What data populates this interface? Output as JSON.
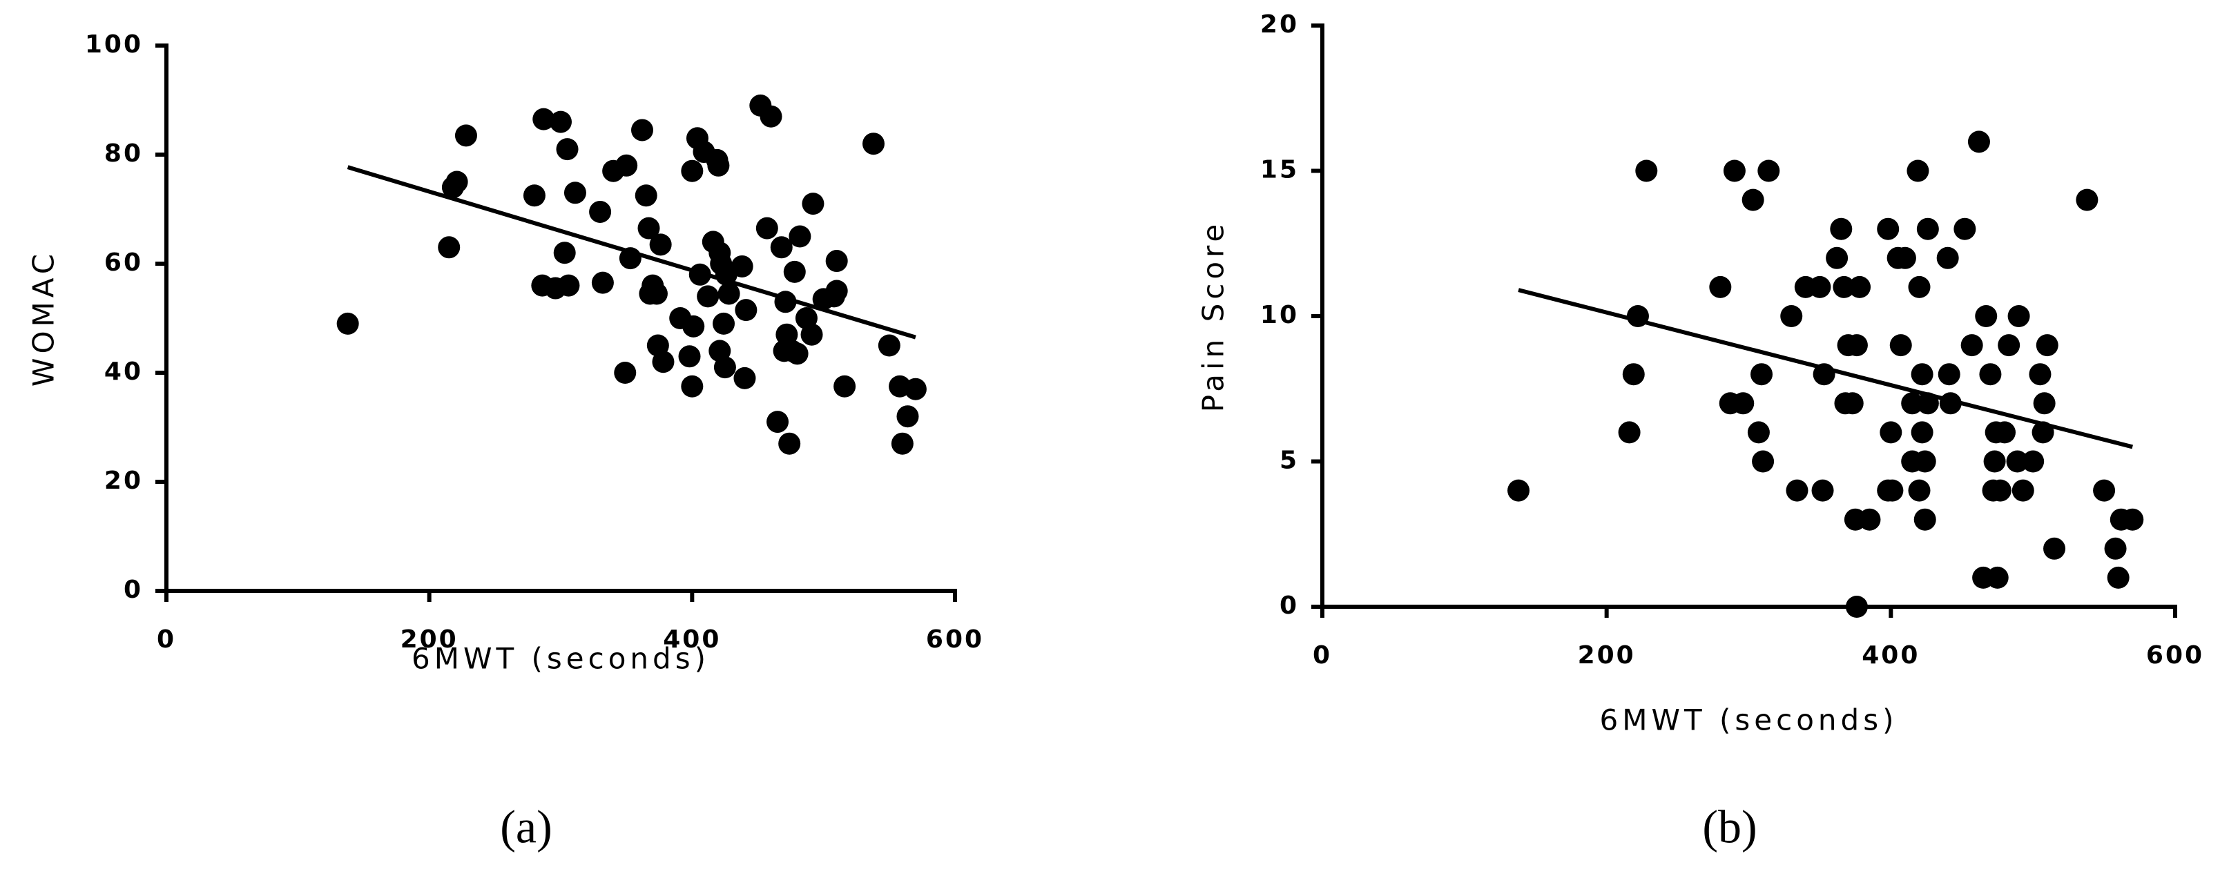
{
  "chart_data": [
    {
      "type": "scatter",
      "xlabel": "6MWT (seconds)",
      "ylabel": "WOMAC",
      "caption": "(a)",
      "color": "#000000",
      "xlim": [
        0,
        600
      ],
      "xticks": [
        0,
        200,
        400,
        600
      ],
      "ylim": [
        0,
        100
      ],
      "yticks": [
        0,
        20,
        40,
        60,
        80,
        100
      ],
      "x": [
        138,
        215,
        218,
        221,
        228,
        280,
        287,
        286,
        296,
        300,
        303,
        305,
        306,
        311,
        330,
        332,
        340,
        350,
        349,
        353,
        362,
        365,
        367,
        368,
        370,
        373,
        374,
        376,
        378,
        391,
        398,
        400,
        400,
        401,
        404,
        406,
        409,
        412,
        416,
        419,
        420,
        421,
        421,
        422,
        424,
        425,
        426,
        428,
        438,
        440,
        441,
        452,
        457,
        460,
        465,
        468,
        470,
        471,
        472,
        474,
        476,
        478,
        480,
        482,
        487,
        491,
        492,
        500,
        508,
        510,
        510,
        516,
        538,
        550,
        558,
        560,
        564,
        570
      ],
      "values": [
        49,
        63,
        74,
        75,
        83.5,
        72.5,
        86.5,
        56,
        55.5,
        86,
        62,
        81,
        56,
        73,
        69.5,
        56.5,
        77,
        78,
        40,
        61,
        84.5,
        72.5,
        66.5,
        54.5,
        56,
        54.5,
        45,
        63.5,
        42,
        50,
        43,
        77,
        37.5,
        48.5,
        83,
        58,
        80.5,
        54,
        64,
        79,
        78,
        44,
        62,
        60,
        49,
        41,
        58,
        54.5,
        59.5,
        39,
        51.5,
        89,
        66.5,
        87,
        31,
        63,
        44,
        53,
        47,
        27,
        44,
        58.5,
        43.5,
        65,
        50,
        47,
        71,
        53.5,
        54,
        55,
        60.5,
        37.5,
        82,
        45,
        37.5,
        27,
        32,
        37
      ],
      "trend_line": {
        "x": [
          138,
          570
        ],
        "values": [
          77.7,
          46.5
        ]
      }
    },
    {
      "type": "scatter",
      "xlabel": "6MWT (seconds)",
      "ylabel": "Pain Score",
      "caption": "(b)",
      "color": "#000000",
      "xlim": [
        0,
        600
      ],
      "xticks": [
        0,
        200,
        400,
        600
      ],
      "ylim": [
        0,
        20
      ],
      "yticks": [
        0,
        5,
        10,
        15,
        20
      ],
      "x": [
        138,
        216,
        219,
        222,
        228,
        280,
        287,
        290,
        296,
        303,
        307,
        309,
        310,
        314,
        330,
        334,
        340,
        350,
        352,
        353,
        362,
        365,
        367,
        368,
        370,
        373,
        375,
        376,
        376,
        378,
        385,
        398,
        398,
        400,
        401,
        405,
        407,
        410,
        415,
        415,
        419,
        420,
        420,
        422,
        422,
        424,
        424,
        426,
        426,
        440,
        441,
        442,
        452,
        457,
        462,
        465,
        467,
        470,
        472,
        473,
        474,
        475,
        477,
        480,
        483,
        489,
        490,
        493,
        500,
        505,
        507,
        508,
        510,
        515,
        538,
        550,
        558,
        560,
        562,
        570
      ],
      "values": [
        4,
        6,
        8,
        10,
        15,
        11,
        7,
        15,
        7,
        14,
        6,
        8,
        5,
        15,
        10,
        4,
        11,
        11,
        4,
        8,
        12,
        13,
        11,
        7,
        9,
        7,
        3,
        0,
        9,
        11,
        3,
        13,
        4,
        6,
        4,
        12,
        9,
        12,
        5,
        7,
        15,
        11,
        4,
        8,
        6,
        5,
        3,
        13,
        7,
        12,
        8,
        7,
        13,
        9,
        16,
        1,
        10,
        8,
        4,
        5,
        6,
        1,
        4,
        6,
        9,
        5,
        10,
        4,
        5,
        8,
        6,
        7,
        9,
        2,
        14,
        4,
        2,
        1,
        3,
        3
      ],
      "trend_line": {
        "x": [
          138,
          570
        ],
        "values": [
          10.9,
          5.5
        ]
      }
    }
  ]
}
